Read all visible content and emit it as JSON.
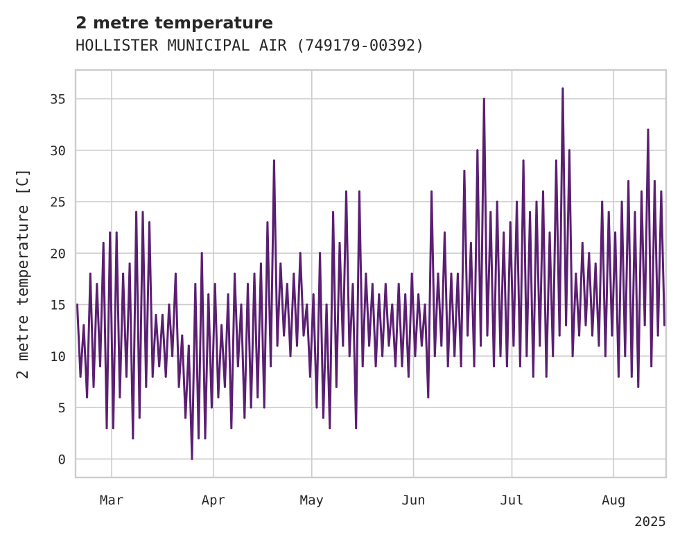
{
  "chart_data": {
    "type": "line",
    "title": "2 metre temperature",
    "subtitle": "HOLLISTER MUNICIPAL AIR (749179-00392)",
    "ylabel": "2 metre temperature [C]",
    "xlabel": "",
    "x_range": [
      "2025-02-18",
      "2025-08-16"
    ],
    "ylim": [
      -1.8,
      37.8
    ],
    "yticks": [
      0,
      5,
      10,
      15,
      20,
      25,
      30,
      35
    ],
    "xticks": [
      {
        "date": "2025-03-01",
        "label": "Mar"
      },
      {
        "date": "2025-04-01",
        "label": "Apr"
      },
      {
        "date": "2025-05-01",
        "label": "May"
      },
      {
        "date": "2025-06-01",
        "label": "Jun"
      },
      {
        "date": "2025-07-01",
        "label": "Jul"
      },
      {
        "date": "2025-08-01",
        "label": "Aug"
      }
    ],
    "x_offset_label": "2025",
    "grid": true,
    "legend": "none",
    "series": [
      {
        "color": "#5b1f72",
        "data": [
          [
            "2025-02-18",
            15
          ],
          [
            "2025-02-19",
            8
          ],
          [
            "2025-02-20",
            13
          ],
          [
            "2025-02-21",
            6
          ],
          [
            "2025-02-22",
            18
          ],
          [
            "2025-02-23",
            7
          ],
          [
            "2025-02-24",
            17
          ],
          [
            "2025-02-25",
            9
          ],
          [
            "2025-02-26",
            21
          ],
          [
            "2025-02-27",
            3
          ],
          [
            "2025-02-28",
            22
          ],
          [
            "2025-03-01",
            3
          ],
          [
            "2025-03-02",
            22
          ],
          [
            "2025-03-03",
            6
          ],
          [
            "2025-03-04",
            18
          ],
          [
            "2025-03-05",
            8
          ],
          [
            "2025-03-06",
            19
          ],
          [
            "2025-03-07",
            2
          ],
          [
            "2025-03-08",
            24
          ],
          [
            "2025-03-09",
            4
          ],
          [
            "2025-03-10",
            24
          ],
          [
            "2025-03-11",
            7
          ],
          [
            "2025-03-12",
            23
          ],
          [
            "2025-03-13",
            8
          ],
          [
            "2025-03-14",
            14
          ],
          [
            "2025-03-15",
            9
          ],
          [
            "2025-03-16",
            14
          ],
          [
            "2025-03-17",
            8
          ],
          [
            "2025-03-18",
            15
          ],
          [
            "2025-03-19",
            10
          ],
          [
            "2025-03-20",
            18
          ],
          [
            "2025-03-21",
            7
          ],
          [
            "2025-03-22",
            12
          ],
          [
            "2025-03-23",
            4
          ],
          [
            "2025-03-24",
            11
          ],
          [
            "2025-03-25",
            0
          ],
          [
            "2025-03-26",
            17
          ],
          [
            "2025-03-27",
            2
          ],
          [
            "2025-03-28",
            20
          ],
          [
            "2025-03-29",
            2
          ],
          [
            "2025-03-30",
            16
          ],
          [
            "2025-03-31",
            5
          ],
          [
            "2025-04-01",
            17
          ],
          [
            "2025-04-02",
            6
          ],
          [
            "2025-04-03",
            13
          ],
          [
            "2025-04-04",
            7
          ],
          [
            "2025-04-05",
            16
          ],
          [
            "2025-04-06",
            3
          ],
          [
            "2025-04-07",
            18
          ],
          [
            "2025-04-08",
            9
          ],
          [
            "2025-04-09",
            15
          ],
          [
            "2025-04-10",
            4
          ],
          [
            "2025-04-11",
            17
          ],
          [
            "2025-04-12",
            5
          ],
          [
            "2025-04-13",
            18
          ],
          [
            "2025-04-14",
            6
          ],
          [
            "2025-04-15",
            19
          ],
          [
            "2025-04-16",
            5
          ],
          [
            "2025-04-17",
            23
          ],
          [
            "2025-04-18",
            9
          ],
          [
            "2025-04-19",
            29
          ],
          [
            "2025-04-20",
            11
          ],
          [
            "2025-04-21",
            19
          ],
          [
            "2025-04-22",
            12
          ],
          [
            "2025-04-23",
            17
          ],
          [
            "2025-04-24",
            10
          ],
          [
            "2025-04-25",
            18
          ],
          [
            "2025-04-26",
            11
          ],
          [
            "2025-04-27",
            20
          ],
          [
            "2025-04-28",
            12
          ],
          [
            "2025-04-29",
            15
          ],
          [
            "2025-04-30",
            8
          ],
          [
            "2025-05-01",
            16
          ],
          [
            "2025-05-02",
            5
          ],
          [
            "2025-05-03",
            20
          ],
          [
            "2025-05-04",
            4
          ],
          [
            "2025-05-05",
            15
          ],
          [
            "2025-05-06",
            3
          ],
          [
            "2025-05-07",
            24
          ],
          [
            "2025-05-08",
            7
          ],
          [
            "2025-05-09",
            21
          ],
          [
            "2025-05-10",
            11
          ],
          [
            "2025-05-11",
            26
          ],
          [
            "2025-05-12",
            10
          ],
          [
            "2025-05-13",
            17
          ],
          [
            "2025-05-14",
            3
          ],
          [
            "2025-05-15",
            26
          ],
          [
            "2025-05-16",
            9
          ],
          [
            "2025-05-17",
            18
          ],
          [
            "2025-05-18",
            11
          ],
          [
            "2025-05-19",
            17
          ],
          [
            "2025-05-20",
            9
          ],
          [
            "2025-05-21",
            16
          ],
          [
            "2025-05-22",
            10
          ],
          [
            "2025-05-23",
            17
          ],
          [
            "2025-05-24",
            11
          ],
          [
            "2025-05-25",
            15
          ],
          [
            "2025-05-26",
            9
          ],
          [
            "2025-05-27",
            17
          ],
          [
            "2025-05-28",
            9
          ],
          [
            "2025-05-29",
            16
          ],
          [
            "2025-05-30",
            8
          ],
          [
            "2025-05-31",
            18
          ],
          [
            "2025-06-01",
            10
          ],
          [
            "2025-06-02",
            16
          ],
          [
            "2025-06-03",
            11
          ],
          [
            "2025-06-04",
            15
          ],
          [
            "2025-06-05",
            6
          ],
          [
            "2025-06-06",
            26
          ],
          [
            "2025-06-07",
            10
          ],
          [
            "2025-06-08",
            18
          ],
          [
            "2025-06-09",
            11
          ],
          [
            "2025-06-10",
            22
          ],
          [
            "2025-06-11",
            9
          ],
          [
            "2025-06-12",
            18
          ],
          [
            "2025-06-13",
            10
          ],
          [
            "2025-06-14",
            18
          ],
          [
            "2025-06-15",
            9
          ],
          [
            "2025-06-16",
            28
          ],
          [
            "2025-06-17",
            12
          ],
          [
            "2025-06-18",
            21
          ],
          [
            "2025-06-19",
            9
          ],
          [
            "2025-06-20",
            30
          ],
          [
            "2025-06-21",
            11
          ],
          [
            "2025-06-22",
            35
          ],
          [
            "2025-06-23",
            12
          ],
          [
            "2025-06-24",
            24
          ],
          [
            "2025-06-25",
            9
          ],
          [
            "2025-06-26",
            25
          ],
          [
            "2025-06-27",
            10
          ],
          [
            "2025-06-28",
            22
          ],
          [
            "2025-06-29",
            9
          ],
          [
            "2025-06-30",
            23
          ],
          [
            "2025-07-01",
            11
          ],
          [
            "2025-07-02",
            25
          ],
          [
            "2025-07-03",
            9
          ],
          [
            "2025-07-04",
            29
          ],
          [
            "2025-07-05",
            10
          ],
          [
            "2025-07-06",
            24
          ],
          [
            "2025-07-07",
            8
          ],
          [
            "2025-07-08",
            25
          ],
          [
            "2025-07-09",
            11
          ],
          [
            "2025-07-10",
            26
          ],
          [
            "2025-07-11",
            8
          ],
          [
            "2025-07-12",
            22
          ],
          [
            "2025-07-13",
            10
          ],
          [
            "2025-07-14",
            29
          ],
          [
            "2025-07-15",
            12
          ],
          [
            "2025-07-16",
            36
          ],
          [
            "2025-07-17",
            13
          ],
          [
            "2025-07-18",
            30
          ],
          [
            "2025-07-19",
            10
          ],
          [
            "2025-07-20",
            18
          ],
          [
            "2025-07-21",
            12
          ],
          [
            "2025-07-22",
            21
          ],
          [
            "2025-07-23",
            13
          ],
          [
            "2025-07-24",
            20
          ],
          [
            "2025-07-25",
            12
          ],
          [
            "2025-07-26",
            19
          ],
          [
            "2025-07-27",
            11
          ],
          [
            "2025-07-28",
            25
          ],
          [
            "2025-07-29",
            10
          ],
          [
            "2025-07-30",
            24
          ],
          [
            "2025-07-31",
            12
          ],
          [
            "2025-08-01",
            22
          ],
          [
            "2025-08-02",
            8
          ],
          [
            "2025-08-03",
            25
          ],
          [
            "2025-08-04",
            10
          ],
          [
            "2025-08-05",
            27
          ],
          [
            "2025-08-06",
            8
          ],
          [
            "2025-08-07",
            24
          ],
          [
            "2025-08-08",
            7
          ],
          [
            "2025-08-09",
            26
          ],
          [
            "2025-08-10",
            13
          ],
          [
            "2025-08-11",
            32
          ],
          [
            "2025-08-12",
            9
          ],
          [
            "2025-08-13",
            27
          ],
          [
            "2025-08-14",
            12
          ],
          [
            "2025-08-15",
            26
          ],
          [
            "2025-08-16",
            13
          ]
        ]
      }
    ]
  }
}
